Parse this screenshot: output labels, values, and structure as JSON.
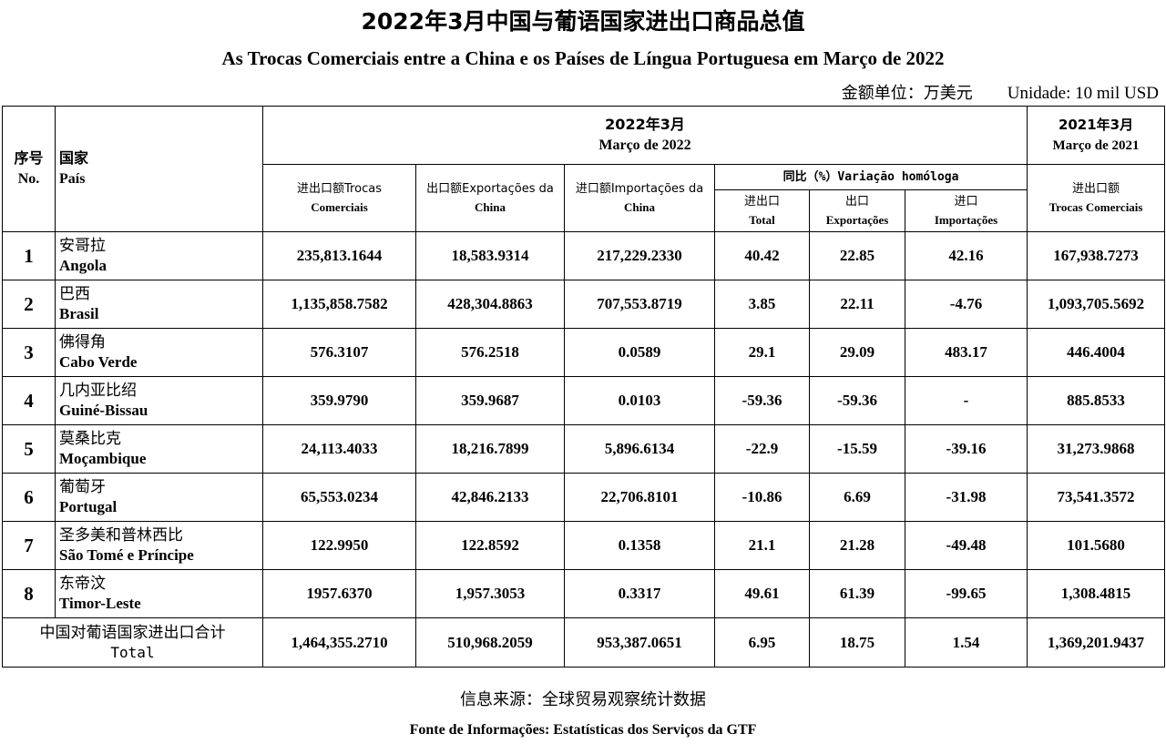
{
  "title_cn": "2022年3月中国与葡语国家进出口商品总值",
  "title_pt": "As Trocas Comerciais entre a China e os Países de Língua Portuguesa em Março de 2022",
  "unit_cn": "金额单位：万美元",
  "unit_pt": "Unidade: 10 mil USD",
  "header": {
    "no_cn": "序号",
    "no_pt": "No.",
    "country_cn": "国家",
    "country_pt": "País",
    "period_2022_cn": "2022年3月",
    "period_2022_pt": "Março de 2022",
    "period_2021_cn": "2021年3月",
    "period_2021_pt": "Março de 2021",
    "trade_cn": "进出口额Trocas",
    "trade_pt": "Comerciais",
    "exports_cn": "出口额Exportações da",
    "exports_pt": "China",
    "imports_cn": "进口额Importações da",
    "imports_pt": "China",
    "yoy": "同比（%）Variação homóloga",
    "yoy_total_cn": "进出口",
    "yoy_total_pt": "Total",
    "yoy_exp_cn": "出口",
    "yoy_exp_pt": "Exportações",
    "yoy_imp_cn": "进口",
    "yoy_imp_pt": "Importações",
    "trade2021_cn": "进出口额",
    "trade2021_pt": "Trocas Comerciais"
  },
  "rows": [
    {
      "no": "1",
      "cn": "安哥拉",
      "pt": "Angola",
      "trade": "235,813.1644",
      "exports": "18,583.9314",
      "imports": "217,229.2330",
      "yoy_total": "40.42",
      "yoy_exp": "22.85",
      "yoy_imp": "42.16",
      "trade2021": "167,938.7273"
    },
    {
      "no": "2",
      "cn": "巴西",
      "pt": "Brasil",
      "trade": "1,135,858.7582",
      "exports": "428,304.8863",
      "imports": "707,553.8719",
      "yoy_total": "3.85",
      "yoy_exp": "22.11",
      "yoy_imp": "-4.76",
      "trade2021": "1,093,705.5692"
    },
    {
      "no": "3",
      "cn": "佛得角",
      "pt": "Cabo Verde",
      "trade": "576.3107",
      "exports": "576.2518",
      "imports": "0.0589",
      "yoy_total": "29.1",
      "yoy_exp": "29.09",
      "yoy_imp": "483.17",
      "trade2021": "446.4004"
    },
    {
      "no": "4",
      "cn": "几内亚比绍",
      "pt": "Guiné-Bissau",
      "trade": "359.9790",
      "exports": "359.9687",
      "imports": "0.0103",
      "yoy_total": "-59.36",
      "yoy_exp": "-59.36",
      "yoy_imp": "-",
      "trade2021": "885.8533"
    },
    {
      "no": "5",
      "cn": "莫桑比克",
      "pt": "Moçambique",
      "trade": "24,113.4033",
      "exports": "18,216.7899",
      "imports": "5,896.6134",
      "yoy_total": "-22.9",
      "yoy_exp": "-15.59",
      "yoy_imp": "-39.16",
      "trade2021": "31,273.9868"
    },
    {
      "no": "6",
      "cn": "葡萄牙",
      "pt": "Portugal",
      "trade": "65,553.0234",
      "exports": "42,846.2133",
      "imports": "22,706.8101",
      "yoy_total": "-10.86",
      "yoy_exp": "6.69",
      "yoy_imp": "-31.98",
      "trade2021": "73,541.3572"
    },
    {
      "no": "7",
      "cn": "圣多美和普林西比",
      "pt": "São Tomé e Príncipe",
      "trade": "122.9950",
      "exports": "122.8592",
      "imports": "0.1358",
      "yoy_total": "21.1",
      "yoy_exp": "21.28",
      "yoy_imp": "-49.48",
      "trade2021": "101.5680"
    },
    {
      "no": "8",
      "cn": "东帝汶",
      "pt": "Timor-Leste",
      "trade": "1957.6370",
      "exports": "1,957.3053",
      "imports": "0.3317",
      "yoy_total": "49.61",
      "yoy_exp": "61.39",
      "yoy_imp": "-99.65",
      "trade2021": "1,308.4815"
    }
  ],
  "total": {
    "cn": "中国对葡语国家进出口合计",
    "en": "Total",
    "trade": "1,464,355.2710",
    "exports": "510,968.2059",
    "imports": "953,387.0651",
    "yoy_total": "6.95",
    "yoy_exp": "18.75",
    "yoy_imp": "1.54",
    "trade2021": "1,369,201.9437"
  },
  "source_cn": "信息来源：全球贸易观察统计数据",
  "source_pt": "Fonte de Informações: Estatísticas dos Serviços da GTF"
}
